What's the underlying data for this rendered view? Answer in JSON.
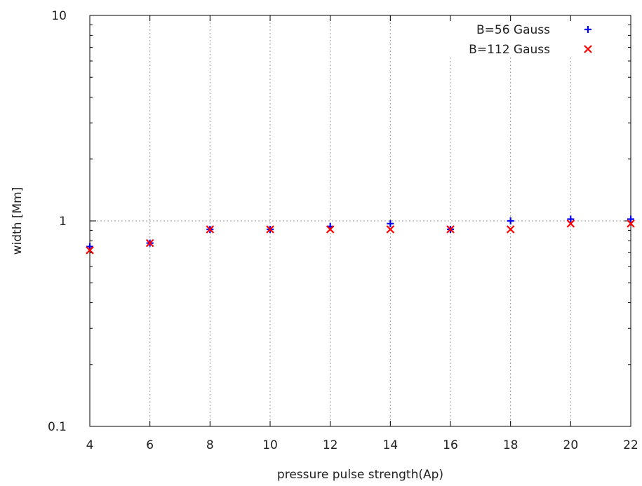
{
  "chart_data": {
    "type": "scatter",
    "xlabel": "pressure pulse strength(Ap)",
    "ylabel": "width [Mm]",
    "xlim": [
      4,
      22
    ],
    "ylim": [
      0.1,
      10
    ],
    "yscale": "log",
    "xticks": [
      4,
      6,
      8,
      10,
      12,
      14,
      16,
      18,
      20,
      22
    ],
    "yticks": [
      {
        "value": 0.1,
        "label": "0.1"
      },
      {
        "value": 1,
        "label": "1"
      },
      {
        "value": 10,
        "label": "10"
      }
    ],
    "grid": true,
    "legend_position": "top-right",
    "series": [
      {
        "name": "B=56 Gauss",
        "marker": "plus",
        "color": "#0000ff",
        "x": [
          4,
          6,
          8,
          10,
          12,
          14,
          16,
          18,
          20,
          22
        ],
        "y": [
          0.75,
          0.78,
          0.91,
          0.91,
          0.94,
          0.97,
          0.91,
          1.0,
          1.02,
          1.02
        ]
      },
      {
        "name": "B=112 Gauss",
        "marker": "cross",
        "color": "#ff0000",
        "x": [
          4,
          6,
          8,
          10,
          12,
          14,
          16,
          18,
          20,
          22
        ],
        "y": [
          0.72,
          0.78,
          0.91,
          0.91,
          0.91,
          0.91,
          0.91,
          0.91,
          0.97,
          0.97
        ]
      }
    ]
  }
}
